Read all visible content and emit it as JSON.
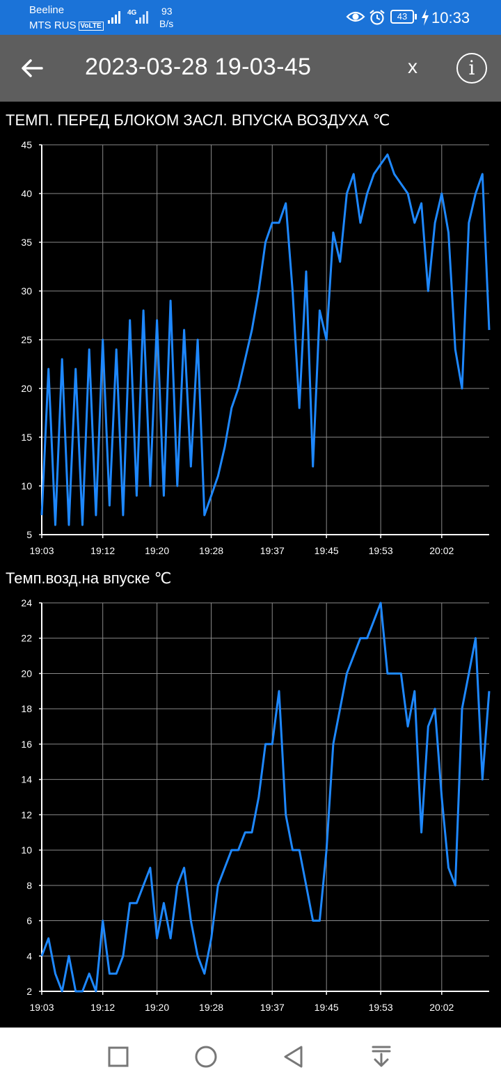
{
  "status_bar": {
    "carrier1": "Beeline",
    "carrier2": "MTS RUS",
    "volte": "VoLTE",
    "net_type": "4G",
    "speed_value": "93",
    "speed_unit": "B/s",
    "battery": "43",
    "time": "10:33",
    "icons": [
      "signal-icon",
      "signal-icon",
      "eye-icon",
      "alarm-icon",
      "battery-icon",
      "charging-icon"
    ]
  },
  "header": {
    "title": "2023-03-28 19-03-45",
    "close_label": "x",
    "info_label": "i",
    "icons": [
      "back-arrow-icon",
      "info-icon"
    ]
  },
  "nav_bar": {
    "icons": [
      "square-icon",
      "circle-icon",
      "triangle-back-icon",
      "download-icon"
    ]
  },
  "chart_data": [
    {
      "type": "line",
      "title": "ТЕМП. ПЕРЕД БЛОКОМ ЗАСЛ. ВПУСКА ВОЗДУХА  ℃",
      "color": "#1e88ff",
      "ylim": [
        5,
        45
      ],
      "yticks": [
        "5",
        "10",
        "15",
        "20",
        "25",
        "30",
        "35",
        "40",
        "45"
      ],
      "xlim": [
        "19:03",
        "20:09"
      ],
      "xticks": [
        "19:03",
        "19:12",
        "19:20",
        "19:28",
        "19:37",
        "19:45",
        "19:53",
        "20:02"
      ],
      "grid": true,
      "x": [
        "19:03",
        "19:04",
        "19:05",
        "19:06",
        "19:07",
        "19:08",
        "19:09",
        "19:10",
        "19:11",
        "19:12",
        "19:13",
        "19:14",
        "19:15",
        "19:16",
        "19:17",
        "19:18",
        "19:19",
        "19:20",
        "19:21",
        "19:22",
        "19:23",
        "19:24",
        "19:25",
        "19:26",
        "19:27",
        "19:28",
        "19:29",
        "19:30",
        "19:31",
        "19:32",
        "19:33",
        "19:34",
        "19:35",
        "19:36",
        "19:37",
        "19:38",
        "19:39",
        "19:40",
        "19:41",
        "19:42",
        "19:43",
        "19:44",
        "19:45",
        "19:46",
        "19:47",
        "19:48",
        "19:49",
        "19:50",
        "19:51",
        "19:52",
        "19:53",
        "19:54",
        "19:55",
        "19:56",
        "19:57",
        "19:58",
        "19:59",
        "20:00",
        "20:01",
        "20:02",
        "20:03",
        "20:04",
        "20:05",
        "20:06",
        "20:07",
        "20:08",
        "20:09"
      ],
      "y": [
        7,
        22,
        6,
        23,
        6,
        22,
        6,
        24,
        7,
        25,
        8,
        24,
        7,
        27,
        9,
        28,
        10,
        27,
        9,
        29,
        10,
        26,
        12,
        25,
        7,
        9,
        11,
        14,
        18,
        20,
        23,
        26,
        30,
        35,
        37,
        37,
        39,
        30,
        18,
        32,
        12,
        28,
        25,
        36,
        33,
        40,
        42,
        37,
        40,
        42,
        43,
        44,
        42,
        41,
        40,
        37,
        39,
        30,
        37,
        40,
        36,
        24,
        20,
        37,
        40,
        42,
        26
      ]
    },
    {
      "type": "line",
      "title": "Темп.возд.на впуске  ℃",
      "color": "#1e88ff",
      "ylim": [
        2,
        24
      ],
      "yticks": [
        "2",
        "4",
        "6",
        "8",
        "10",
        "12",
        "14",
        "16",
        "18",
        "20",
        "22",
        "24"
      ],
      "xlim": [
        "19:03",
        "20:09"
      ],
      "xticks": [
        "19:03",
        "19:12",
        "19:20",
        "19:28",
        "19:37",
        "19:45",
        "19:53",
        "20:02"
      ],
      "grid": true,
      "x": [
        "19:03",
        "19:04",
        "19:05",
        "19:06",
        "19:07",
        "19:08",
        "19:09",
        "19:10",
        "19:11",
        "19:12",
        "19:13",
        "19:14",
        "19:15",
        "19:16",
        "19:17",
        "19:18",
        "19:19",
        "19:20",
        "19:21",
        "19:22",
        "19:23",
        "19:24",
        "19:25",
        "19:26",
        "19:27",
        "19:28",
        "19:29",
        "19:30",
        "19:31",
        "19:32",
        "19:33",
        "19:34",
        "19:35",
        "19:36",
        "19:37",
        "19:38",
        "19:39",
        "19:40",
        "19:41",
        "19:42",
        "19:43",
        "19:44",
        "19:45",
        "19:46",
        "19:47",
        "19:48",
        "19:49",
        "19:50",
        "19:51",
        "19:52",
        "19:53",
        "19:54",
        "19:55",
        "19:56",
        "19:57",
        "19:58",
        "19:59",
        "20:00",
        "20:01",
        "20:02",
        "20:03",
        "20:04",
        "20:05",
        "20:06",
        "20:07",
        "20:08",
        "20:09"
      ],
      "y": [
        4,
        5,
        3,
        2,
        4,
        2,
        2,
        3,
        2,
        6,
        3,
        3,
        4,
        7,
        7,
        8,
        9,
        5,
        7,
        5,
        8,
        9,
        6,
        4,
        3,
        5,
        8,
        9,
        10,
        10,
        11,
        11,
        13,
        16,
        16,
        19,
        12,
        10,
        10,
        8,
        6,
        6,
        10,
        16,
        18,
        20,
        21,
        22,
        22,
        23,
        24,
        20,
        20,
        20,
        17,
        19,
        11,
        17,
        18,
        13,
        9,
        8,
        18,
        20,
        22,
        14,
        19
      ]
    }
  ]
}
